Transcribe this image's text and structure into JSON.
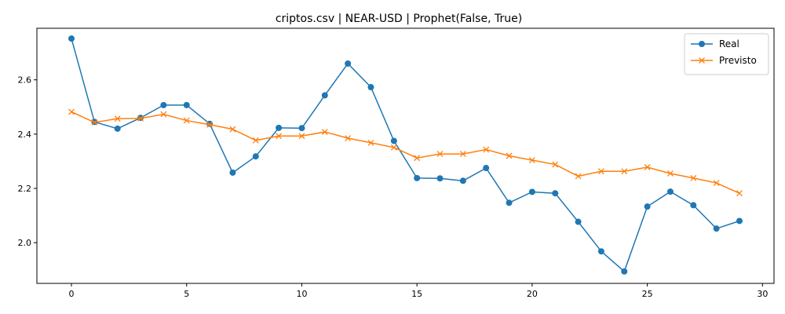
{
  "chart_data": {
    "type": "line",
    "title": "criptos.csv | NEAR-USD | Prophet(False, True)",
    "xlabel": "",
    "ylabel": "",
    "xlim": [
      -1.5,
      30.5
    ],
    "ylim": [
      1.85,
      2.79
    ],
    "xticks": [
      0,
      5,
      10,
      15,
      20,
      25,
      30
    ],
    "yticks": [
      2.0,
      2.2,
      2.4,
      2.6
    ],
    "ytick_labels": [
      "2.0",
      "2.2",
      "2.4",
      "2.6"
    ],
    "grid": false,
    "legend_position": "top-right",
    "x": [
      0,
      1,
      2,
      3,
      4,
      5,
      6,
      7,
      8,
      9,
      10,
      11,
      12,
      13,
      14,
      15,
      16,
      17,
      18,
      19,
      20,
      21,
      22,
      23,
      24,
      25,
      26,
      27,
      28,
      29
    ],
    "series": [
      {
        "name": "Real",
        "color": "#1f77b4",
        "marker": "circle",
        "values": [
          2.752,
          2.445,
          2.42,
          2.46,
          2.507,
          2.507,
          2.438,
          2.258,
          2.318,
          2.423,
          2.422,
          2.543,
          2.66,
          2.573,
          2.375,
          2.238,
          2.237,
          2.228,
          2.275,
          2.147,
          2.187,
          2.182,
          2.077,
          1.968,
          1.894,
          2.133,
          2.188,
          2.138,
          2.052,
          2.08
        ]
      },
      {
        "name": "Previsto",
        "color": "#ff7f0e",
        "marker": "x",
        "values": [
          2.482,
          2.443,
          2.457,
          2.458,
          2.473,
          2.45,
          2.435,
          2.418,
          2.377,
          2.393,
          2.393,
          2.408,
          2.385,
          2.368,
          2.351,
          2.312,
          2.327,
          2.327,
          2.343,
          2.32,
          2.304,
          2.288,
          2.245,
          2.263,
          2.263,
          2.278,
          2.255,
          2.238,
          2.22,
          2.182
        ]
      }
    ]
  }
}
